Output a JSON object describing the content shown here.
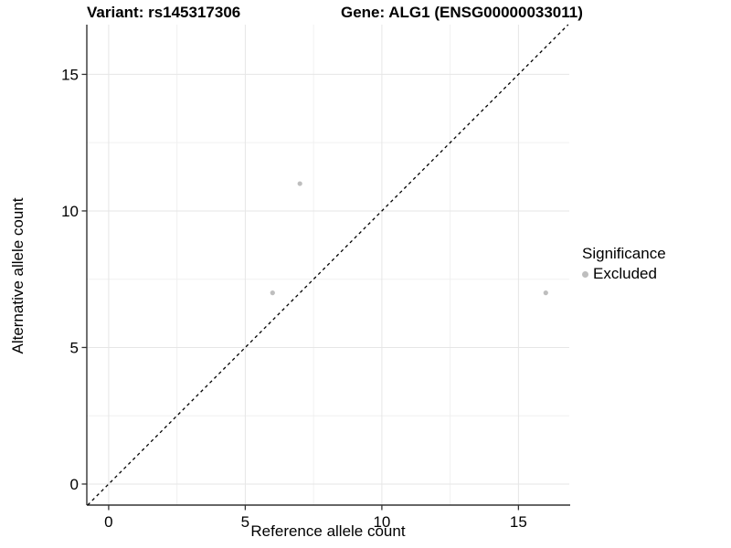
{
  "figure": {
    "title_variant": "Variant: rs145317306",
    "title_gene": "Gene: ALG1 (ENSG00000033011)"
  },
  "axes": {
    "x_label": "Reference allele count",
    "y_label": "Alternative allele count"
  },
  "legend": {
    "title": "Significance",
    "items": [
      {
        "label": "Excluded",
        "color": "#bebebe"
      }
    ]
  },
  "chart_data": {
    "type": "scatter",
    "title": "Variant: rs145317306    Gene: ALG1 (ENSG00000033011)",
    "xlabel": "Reference allele count",
    "ylabel": "Alternative allele count",
    "xlim": [
      -0.8,
      16.86
    ],
    "ylim": [
      -0.77,
      16.82
    ],
    "x_ticks": [
      0,
      5,
      10,
      15
    ],
    "y_ticks": [
      0,
      5,
      10,
      15
    ],
    "x_minor_ticks": [
      2.5,
      7.5,
      12.5
    ],
    "y_minor_ticks": [
      2.5,
      7.5,
      12.5
    ],
    "grid": "on",
    "legend_position": "right",
    "reference_line": {
      "type": "identity",
      "style": "dashed",
      "color": "#000000"
    },
    "series": [
      {
        "name": "Excluded",
        "color": "#bebebe",
        "marker": "circle",
        "points": [
          {
            "x": 6,
            "y": 7
          },
          {
            "x": 7,
            "y": 11
          },
          {
            "x": 16,
            "y": 7
          }
        ]
      }
    ],
    "style": {
      "grid_major_color": "#e6e6e6",
      "grid_minor_color": "#f0f0f0",
      "axis_color": "#333333",
      "tick_label_color": "#000000",
      "point_radius": 2.6
    }
  }
}
